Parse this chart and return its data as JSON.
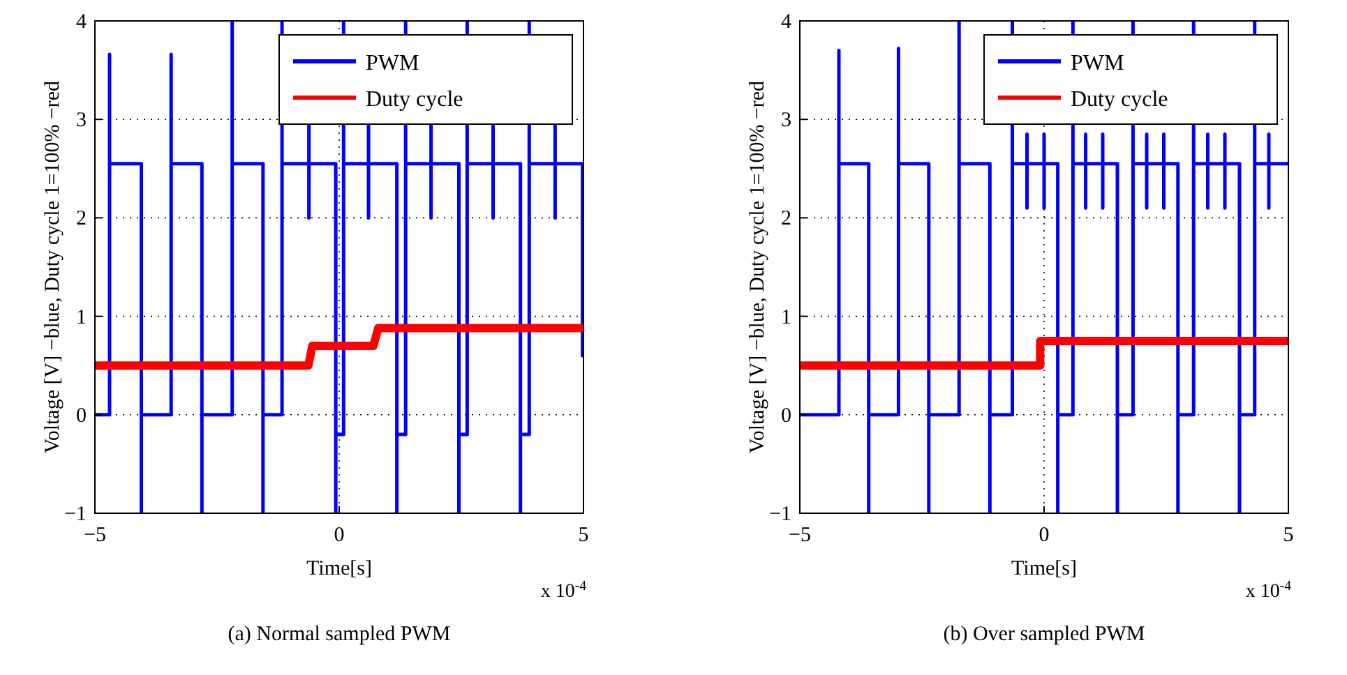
{
  "chart_data": [
    {
      "type": "line",
      "xlabel": "Time[s]",
      "ylabel": "Voltage [V] −blue, Duty cycle 1=100% −red",
      "xlim": [
        -5,
        5
      ],
      "ylim": [
        -1,
        4
      ],
      "xticks": [
        -5,
        0,
        5
      ],
      "yticks": [
        -1,
        0,
        1,
        2,
        3,
        4
      ],
      "grid": true,
      "legend": "top right",
      "line_style": "solid",
      "annotations": [
        "x 10$^{-4}$",
        "(a)  Normal sampled PWM"
      ],
      "series": [
        {
          "name": "PWM",
          "color": "#0000ff",
          "x": [
            -5,
            -4.7,
            -4.7,
            -4.7,
            -4.05,
            -4.05,
            -4.05,
            -3.44,
            -3.44,
            -3.44,
            -2.81,
            -2.81,
            -2.81,
            -2.19,
            -2.19,
            -2.19,
            -1.56,
            -1.56,
            -1.56,
            -1.17,
            -1.17,
            -1.17,
            -0.62,
            -0.62,
            -0.62,
            -0.62,
            -0.07,
            -0.07,
            -0.07,
            0.09,
            0.09,
            0.09,
            0.6,
            0.6,
            0.6,
            0.6,
            1.18,
            1.18,
            1.18,
            1.36,
            1.36,
            1.36,
            1.88,
            1.88,
            1.88,
            1.88,
            2.45,
            2.45,
            2.45,
            2.62,
            2.62,
            2.62,
            3.15,
            3.15,
            3.15,
            3.15,
            3.71,
            3.71,
            3.71,
            3.89,
            3.89,
            3.89,
            4.42,
            4.42,
            4.42,
            4.42,
            4.98,
            4.98,
            5
          ],
          "values": [
            0,
            0,
            3.66,
            2.55,
            2.55,
            -1,
            0,
            0,
            3.66,
            2.55,
            2.55,
            -1,
            0,
            0,
            4,
            2.55,
            2.55,
            -1,
            0,
            0,
            4,
            2.55,
            2.55,
            2,
            2.95,
            2.55,
            2.55,
            -1,
            -0.2,
            -0.2,
            4,
            2.55,
            2.55,
            2,
            2.95,
            2.55,
            2.55,
            -1,
            -0.2,
            -0.2,
            4,
            2.55,
            2.55,
            2,
            2.95,
            2.55,
            2.55,
            -1,
            -0.2,
            -0.2,
            4,
            2.55,
            2.55,
            2,
            2.95,
            2.55,
            2.55,
            -1,
            -0.2,
            -0.2,
            4,
            2.55,
            2.55,
            2,
            2.95,
            2.55,
            2.55,
            0.6,
            0.6
          ]
        },
        {
          "name": "Duty cycle",
          "color": "#ff0000",
          "x": [
            -5,
            -0.63,
            -0.55,
            0.7,
            0.8,
            5
          ],
          "values": [
            0.5,
            0.5,
            0.7,
            0.7,
            0.88,
            0.88
          ]
        }
      ]
    },
    {
      "type": "line",
      "xlabel": "Time[s]",
      "ylabel": "Voltage [V] −blue, Duty cycle 1=100% −red",
      "xlim": [
        -5,
        5
      ],
      "ylim": [
        -1,
        4
      ],
      "xticks": [
        -5,
        0,
        5
      ],
      "yticks": [
        -1,
        0,
        1,
        2,
        3,
        4
      ],
      "grid": true,
      "legend": "top right",
      "line_style": "solid",
      "annotations": [
        "x 10$^{-4}$",
        "(b)  Over sampled PWM"
      ],
      "series": [
        {
          "name": "PWM",
          "color": "#0000ff",
          "x": [
            -5,
            -4.2,
            -4.2,
            -4.2,
            -3.59,
            -3.59,
            -3.59,
            -2.98,
            -2.98,
            -2.98,
            -2.36,
            -2.36,
            -2.36,
            -1.74,
            -1.74,
            -1.74,
            -1.11,
            -1.11,
            -1.11,
            -0.65,
            -0.65,
            -0.65,
            -0.35,
            -0.35,
            -0.35,
            -0.35,
            0,
            0,
            0,
            0,
            0.28,
            0.28,
            0.28,
            0.59,
            0.59,
            0.59,
            0.85,
            0.85,
            0.85,
            0.85,
            1.2,
            1.2,
            1.2,
            1.2,
            1.5,
            1.5,
            1.5,
            1.82,
            1.82,
            1.82,
            2.1,
            2.1,
            2.1,
            2.1,
            2.45,
            2.45,
            2.45,
            2.45,
            2.74,
            2.74,
            2.74,
            3.06,
            3.06,
            3.06,
            3.35,
            3.35,
            3.35,
            3.35,
            3.7,
            3.7,
            3.7,
            3.7,
            4,
            4,
            4,
            4.31,
            4.31,
            4.31,
            4.6,
            4.6,
            4.6,
            4.6,
            5
          ],
          "values": [
            0,
            0,
            3.7,
            2.55,
            2.55,
            -1,
            0,
            0,
            3.72,
            2.55,
            2.55,
            -1,
            0,
            0,
            4,
            2.55,
            2.55,
            -1,
            0,
            0,
            4,
            2.55,
            2.55,
            2.1,
            2.85,
            2.55,
            2.55,
            2.1,
            2.85,
            2.55,
            2.55,
            -1,
            0,
            0,
            4,
            2.55,
            2.55,
            2.1,
            2.85,
            2.55,
            2.55,
            2.1,
            2.85,
            2.55,
            2.55,
            -1,
            0,
            0,
            4,
            2.55,
            2.55,
            2.1,
            2.85,
            2.55,
            2.55,
            2.1,
            2.85,
            2.55,
            2.55,
            -1,
            0,
            0,
            4,
            2.55,
            2.55,
            2.1,
            2.85,
            2.55,
            2.55,
            2.1,
            2.85,
            2.55,
            2.55,
            -1,
            0,
            0,
            4,
            2.55,
            2.55,
            2.1,
            2.85,
            2.55,
            2.55
          ]
        },
        {
          "name": "Duty cycle",
          "color": "#ff0000",
          "x": [
            -5,
            -0.08,
            -0.08,
            5
          ],
          "values": [
            0.5,
            0.5,
            0.75,
            0.75
          ]
        }
      ]
    }
  ]
}
